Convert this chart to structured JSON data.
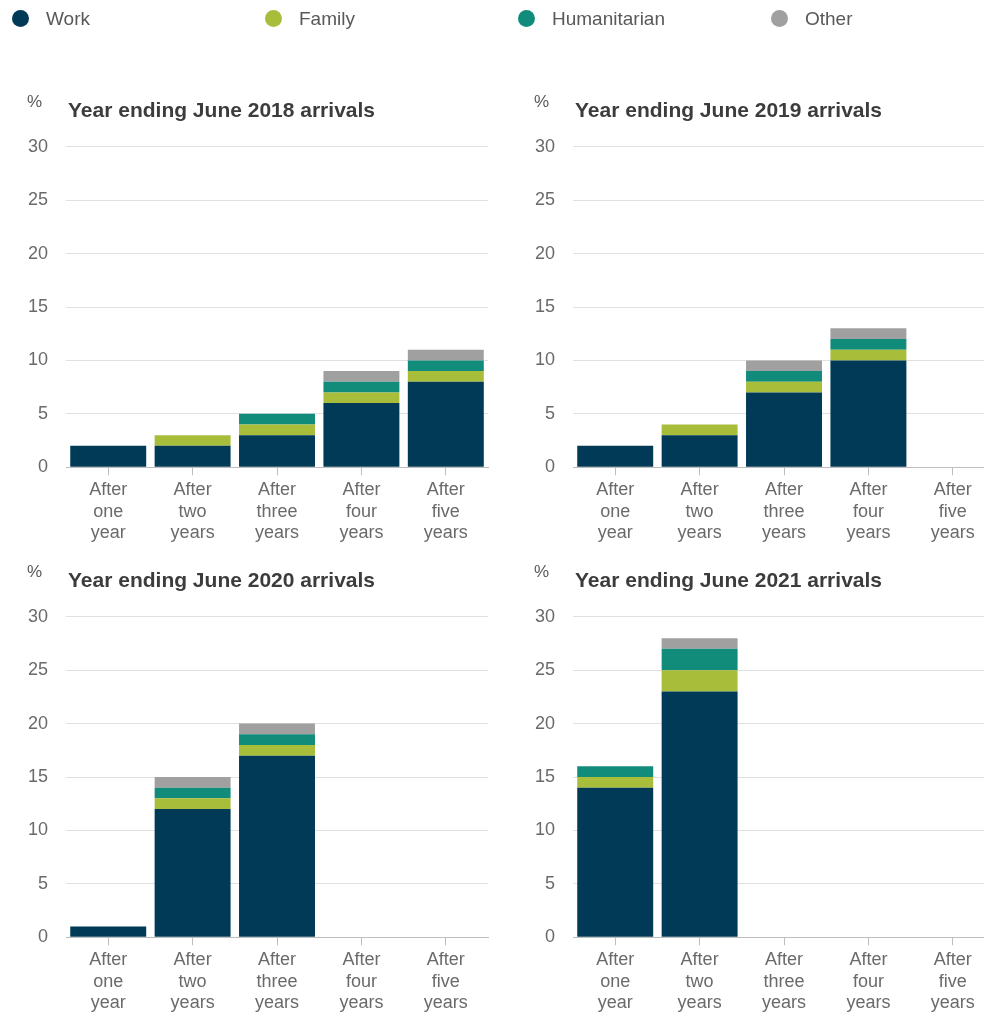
{
  "chart_data": [
    {
      "type": "bar",
      "title": "Year ending June 2018 arrivals",
      "ylabel": "%",
      "stacked": true,
      "legend": "top",
      "grid": "y",
      "categories": [
        "After one year",
        "After two years",
        "After three years",
        "After four years",
        "After five years"
      ],
      "ylim": [
        0,
        30
      ],
      "yticks": [
        0,
        5,
        10,
        15,
        20,
        25,
        30
      ],
      "series": [
        {
          "name": "Work",
          "color": "#003a57",
          "values": [
            2,
            2,
            3,
            6,
            8
          ]
        },
        {
          "name": "Family",
          "color": "#a8bd3a",
          "values": [
            0,
            1,
            1,
            1,
            1
          ]
        },
        {
          "name": "Humanitarian",
          "color": "#118c7b",
          "values": [
            0,
            0,
            1,
            1,
            1
          ]
        },
        {
          "name": "Other",
          "color": "#a0a0a0",
          "values": [
            0,
            0,
            0,
            1,
            1
          ]
        }
      ]
    },
    {
      "type": "bar",
      "title": "Year ending June 2019 arrivals",
      "ylabel": "%",
      "stacked": true,
      "grid": "y",
      "categories": [
        "After one year",
        "After two years",
        "After three years",
        "After four years",
        "After five years"
      ],
      "ylim": [
        0,
        30
      ],
      "yticks": [
        0,
        5,
        10,
        15,
        20,
        25,
        30
      ],
      "series": [
        {
          "color": "#003a57",
          "values": [
            2,
            3,
            7,
            10,
            null
          ]
        },
        {
          "color": "#a8bd3a",
          "values": [
            0,
            1,
            1,
            1,
            null
          ]
        },
        {
          "color": "#118c7b",
          "values": [
            0,
            0,
            1,
            1,
            null
          ]
        },
        {
          "color": "#a0a0a0",
          "values": [
            0,
            0,
            1,
            1,
            null
          ]
        }
      ]
    },
    {
      "type": "bar",
      "title": "Year ending June 2020 arrivals",
      "ylabel": "%",
      "stacked": true,
      "grid": "y",
      "categories": [
        "After one year",
        "After two years",
        "After three years",
        "After four years",
        "After five years"
      ],
      "ylim": [
        0,
        30
      ],
      "yticks": [
        0,
        5,
        10,
        15,
        20,
        25,
        30
      ],
      "series": [
        {
          "color": "#003a57",
          "values": [
            1,
            12,
            17,
            null,
            null
          ]
        },
        {
          "color": "#a8bd3a",
          "values": [
            0,
            1,
            1,
            null,
            null
          ]
        },
        {
          "color": "#118c7b",
          "values": [
            0,
            1,
            1,
            null,
            null
          ]
        },
        {
          "color": "#a0a0a0",
          "values": [
            0,
            1,
            1,
            null,
            null
          ]
        }
      ]
    },
    {
      "type": "bar",
      "title": "Year ending June 2021 arrivals",
      "ylabel": "%",
      "stacked": true,
      "grid": "y",
      "categories": [
        "After one year",
        "After two years",
        "After three years",
        "After four years",
        "After five years"
      ],
      "ylim": [
        0,
        30
      ],
      "yticks": [
        0,
        5,
        10,
        15,
        20,
        25,
        30
      ],
      "series": [
        {
          "color": "#003a57",
          "values": [
            14,
            23,
            null,
            null,
            null
          ]
        },
        {
          "color": "#a8bd3a",
          "values": [
            1,
            2,
            null,
            null,
            null
          ]
        },
        {
          "color": "#118c7b",
          "values": [
            1,
            2,
            null,
            null,
            null
          ]
        },
        {
          "color": "#a0a0a0",
          "values": [
            0,
            1,
            null,
            null,
            null
          ]
        }
      ]
    }
  ]
}
